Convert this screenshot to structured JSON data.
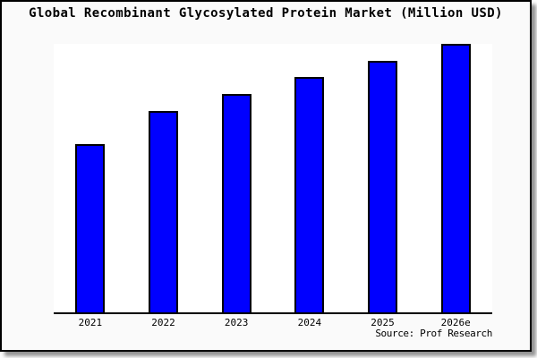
{
  "chart_data": {
    "type": "bar",
    "title": "Global Recombinant Glycosylated Protein Market (Million USD)",
    "categories": [
      "2021",
      "2022",
      "2023",
      "2024",
      "2025",
      "2026e"
    ],
    "values": [
      62.7,
      75.0,
      81.3,
      87.7,
      93.7,
      100
    ],
    "xlabel": "",
    "ylabel": "",
    "ylim": [
      0,
      100
    ],
    "grid": false,
    "legend": "none",
    "y_axis_labels_shown": false,
    "source_note": "Source: Prof Research",
    "bar_color": "#0000ff",
    "bar_border_color": "#000000",
    "axis_color": "#000000",
    "plot_background": "#ffffff",
    "background": "#fafafa",
    "frame_border_color": "#000000"
  }
}
